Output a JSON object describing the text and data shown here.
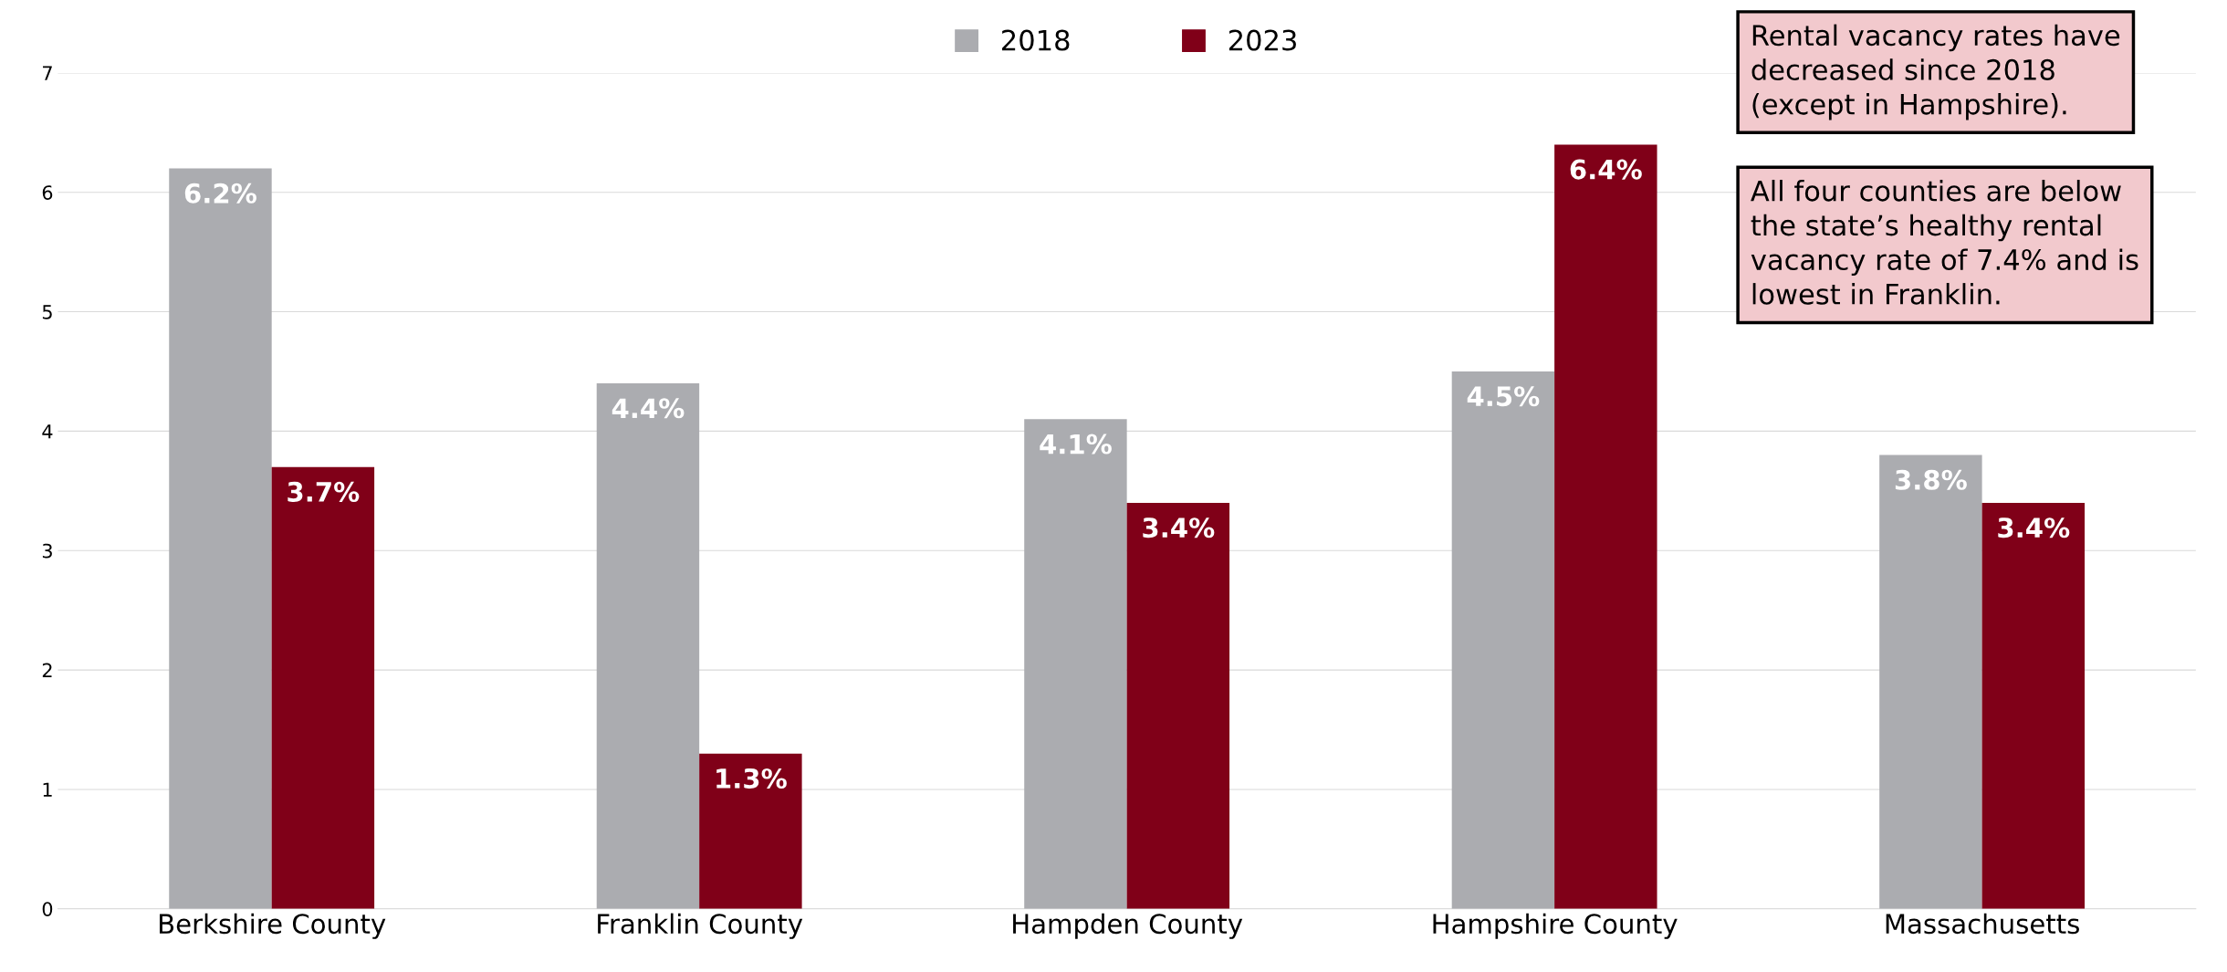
{
  "chart_data": {
    "type": "bar",
    "categories": [
      "Berkshire County",
      "Franklin County",
      "Hampden County",
      "Hampshire County",
      "Massachusetts"
    ],
    "series": [
      {
        "name": "2018",
        "color": "#abacb0",
        "values": [
          6.2,
          4.4,
          4.1,
          4.5,
          3.8
        ],
        "value_labels": [
          "6.2%",
          "4.4%",
          "4.1%",
          "4.5%",
          "3.8%"
        ]
      },
      {
        "name": "2023",
        "color": "#800018",
        "values": [
          3.7,
          1.3,
          3.4,
          6.4,
          3.4
        ],
        "value_labels": [
          "3.7%",
          "1.3%",
          "3.4%",
          "6.4%",
          "3.4%"
        ]
      }
    ],
    "ylim": [
      0,
      7
    ],
    "yticks": [
      0,
      1,
      2,
      3,
      4,
      5,
      6,
      7
    ],
    "grid": "y",
    "legend": "top",
    "annotations": [
      "Rental vacancy rates have\ndecreased since 2018\n(except in Hampshire).",
      "All four counties are below\nthe state’s healthy rental\nvacancy rate of 7.4% and is\nlowest in Franklin."
    ]
  }
}
